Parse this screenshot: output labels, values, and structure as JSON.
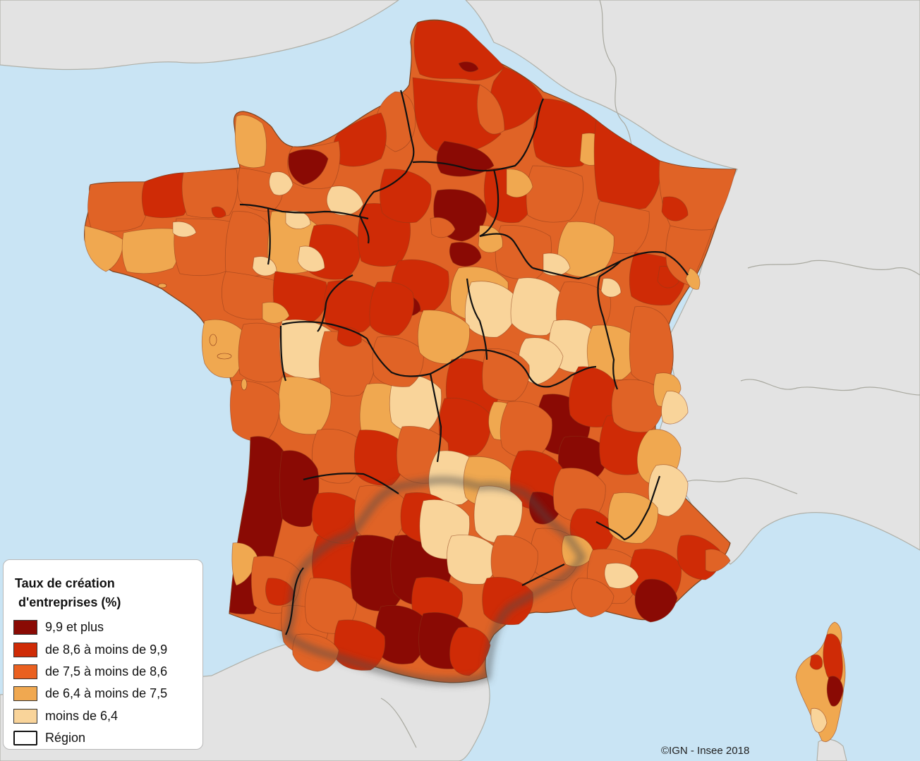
{
  "legend": {
    "title_line1": "Taux de création",
    "title_line2": "d'entreprises (%)",
    "items": [
      {
        "label": "9,9 et plus",
        "color": "#8a0a04"
      },
      {
        "label": "de 8,6 à moins de 9,9",
        "color": "#cf2b06"
      },
      {
        "label": "de 7,5 à moins de 8,6",
        "color": "#ea6020"
      },
      {
        "label": "de 6,4 à moins de 7,5",
        "color": "#f0a850"
      },
      {
        "label": "moins de 6,4",
        "color": "#f9d49a"
      }
    ],
    "region_label": "Région"
  },
  "credit": "©IGN - Insee 2018",
  "colors": {
    "sea": "#c9e4f4",
    "land_neighbors": "#e3e3e3",
    "border_lines": "#a9a9a0",
    "region_lines": "#111111"
  }
}
